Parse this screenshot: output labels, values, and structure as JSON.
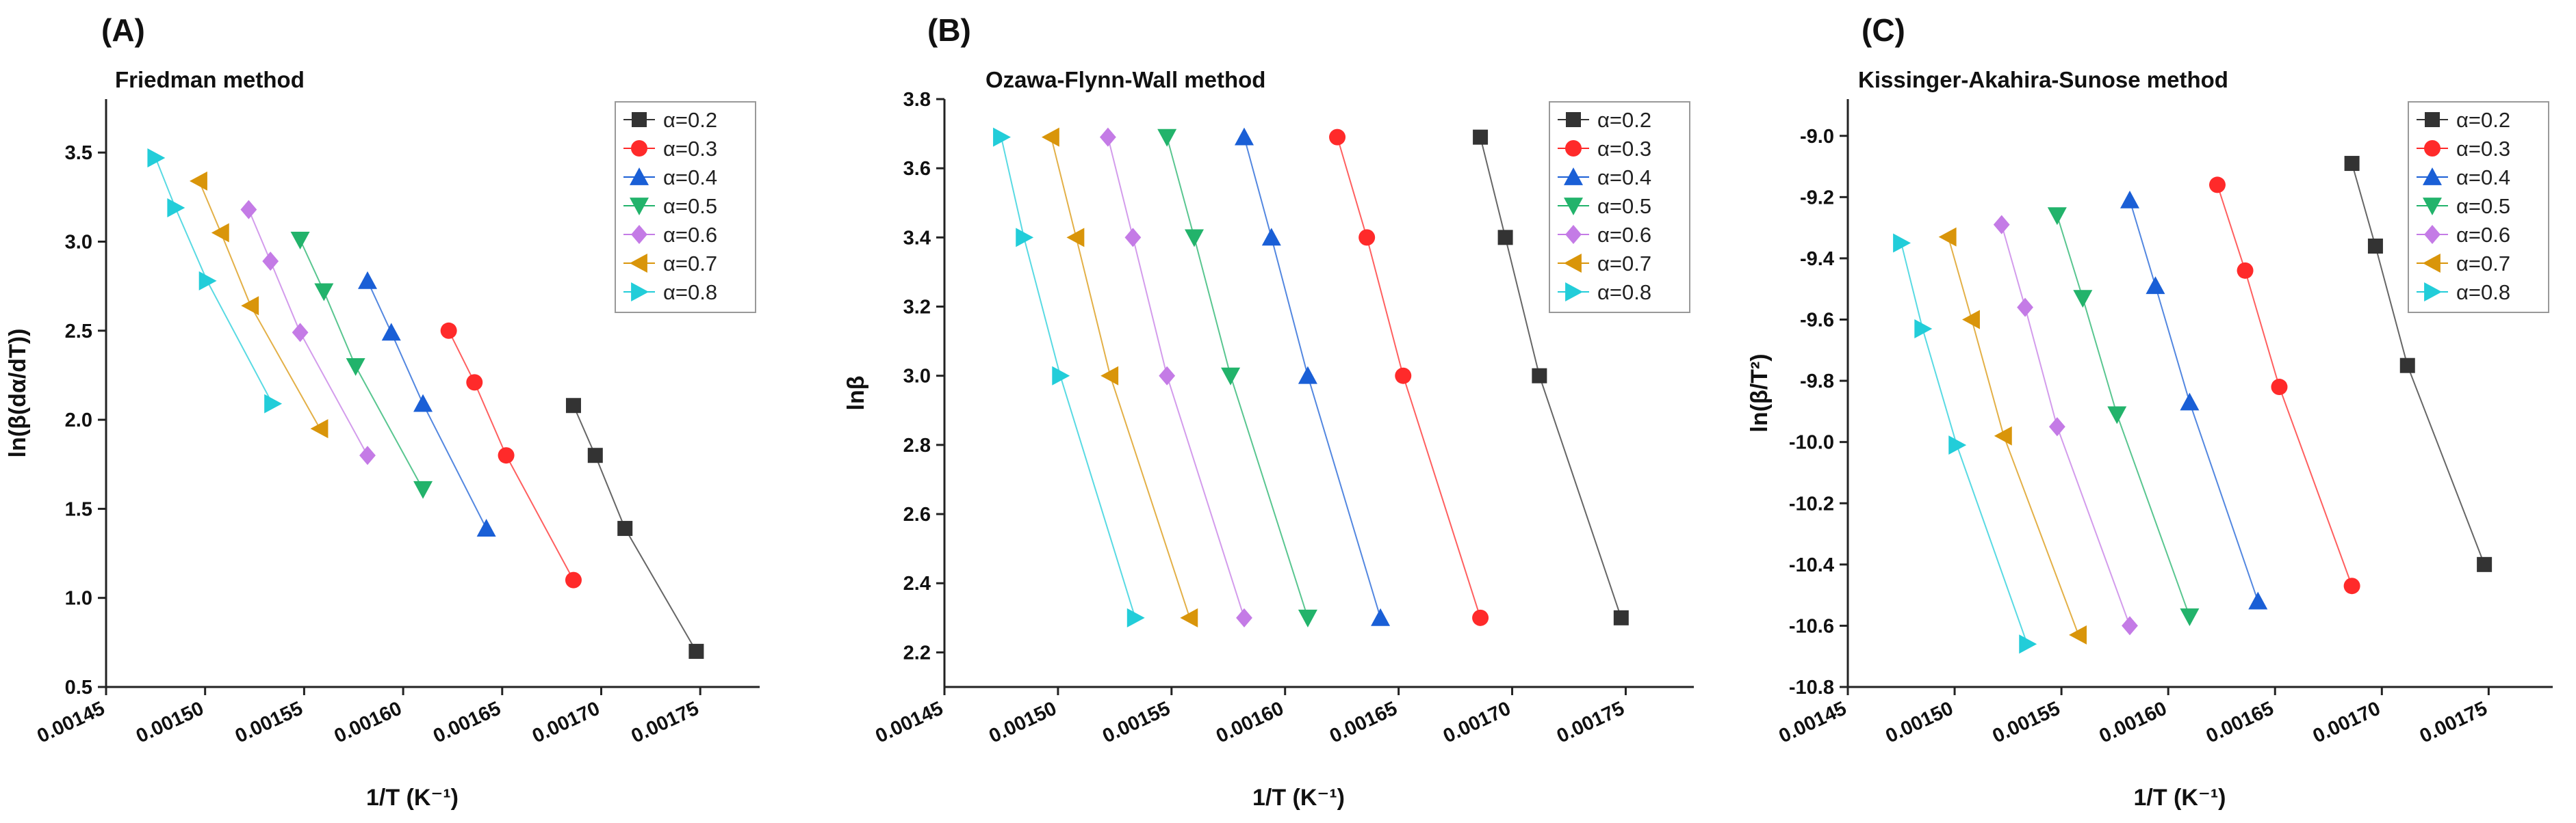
{
  "figure": {
    "series_names": [
      "α=0.2",
      "α=0.3",
      "α=0.4",
      "α=0.5",
      "α=0.6",
      "α=0.7",
      "α=0.8"
    ],
    "series_colors": [
      "#333333",
      "#ff2a2a",
      "#1a5fd6",
      "#22b36b",
      "#c47be6",
      "#d9950a",
      "#22cdd9"
    ],
    "series_markers": [
      "square",
      "circle",
      "triangle-up",
      "triangle-down",
      "diamond",
      "triangle-left",
      "triangle-right"
    ]
  },
  "chart_data": [
    {
      "type": "line",
      "panel_label": "(A)",
      "title": "Friedman method",
      "xlabel": "1/T (K⁻¹)",
      "ylabel": "ln(β(dα/dT))",
      "xlim": [
        0.00145,
        0.00178
      ],
      "ylim": [
        0.5,
        3.8
      ],
      "xticks": [
        "0.00145",
        "0.00150",
        "0.00155",
        "0.00160",
        "0.00165",
        "0.00170",
        "0.00175"
      ],
      "yticks": [
        "0.5",
        "1.0",
        "1.5",
        "2.0",
        "2.5",
        "3.0",
        "3.5"
      ],
      "legend": "top-right",
      "series": [
        {
          "name": "α=0.2",
          "x": [
            0.001686,
            0.001697,
            0.001712,
            0.001748
          ],
          "y": [
            2.08,
            1.8,
            1.39,
            0.7
          ]
        },
        {
          "name": "α=0.3",
          "x": [
            0.001623,
            0.001636,
            0.001652,
            0.001686
          ],
          "y": [
            2.5,
            2.21,
            1.8,
            1.1
          ]
        },
        {
          "name": "α=0.4",
          "x": [
            0.001582,
            0.001594,
            0.00161,
            0.001642
          ],
          "y": [
            2.78,
            2.49,
            2.09,
            1.39
          ]
        },
        {
          "name": "α=0.5",
          "x": [
            0.001548,
            0.00156,
            0.001576,
            0.00161
          ],
          "y": [
            3.01,
            2.72,
            2.3,
            1.61
          ]
        },
        {
          "name": "α=0.6",
          "x": [
            0.001522,
            0.001533,
            0.001548,
            0.001582
          ],
          "y": [
            3.18,
            2.89,
            2.49,
            1.8
          ]
        },
        {
          "name": "α=0.7",
          "x": [
            0.001497,
            0.001508,
            0.001523,
            0.001558
          ],
          "y": [
            3.34,
            3.05,
            2.64,
            1.95
          ]
        },
        {
          "name": "α=0.8",
          "x": [
            0.001475,
            0.001485,
            0.001501,
            0.001534
          ],
          "y": [
            3.47,
            3.19,
            2.78,
            2.09
          ]
        }
      ]
    },
    {
      "type": "line",
      "panel_label": "(B)",
      "title": "Ozawa-Flynn-Wall method",
      "xlabel": "1/T (K⁻¹)",
      "ylabel": "lnβ",
      "xlim": [
        0.00145,
        0.00178
      ],
      "ylim": [
        2.1,
        3.8
      ],
      "xticks": [
        "0.00145",
        "0.00150",
        "0.00155",
        "0.00160",
        "0.00165",
        "0.00170",
        "0.00175"
      ],
      "yticks": [
        "2.2",
        "2.4",
        "2.6",
        "2.8",
        "3.0",
        "3.2",
        "3.4",
        "3.6",
        "3.8"
      ],
      "legend": "top-right",
      "series": [
        {
          "name": "α=0.2",
          "x": [
            0.001686,
            0.001697,
            0.001712,
            0.001748
          ],
          "y": [
            3.69,
            3.4,
            3.0,
            2.3
          ]
        },
        {
          "name": "α=0.3",
          "x": [
            0.001623,
            0.001636,
            0.001652,
            0.001686
          ],
          "y": [
            3.69,
            3.4,
            3.0,
            2.3
          ]
        },
        {
          "name": "α=0.4",
          "x": [
            0.001582,
            0.001594,
            0.00161,
            0.001642
          ],
          "y": [
            3.69,
            3.4,
            3.0,
            2.3
          ]
        },
        {
          "name": "α=0.5",
          "x": [
            0.001548,
            0.00156,
            0.001576,
            0.00161
          ],
          "y": [
            3.69,
            3.4,
            3.0,
            2.3
          ]
        },
        {
          "name": "α=0.6",
          "x": [
            0.001522,
            0.001533,
            0.001548,
            0.001582
          ],
          "y": [
            3.69,
            3.4,
            3.0,
            2.3
          ]
        },
        {
          "name": "α=0.7",
          "x": [
            0.001497,
            0.001508,
            0.001523,
            0.001558
          ],
          "y": [
            3.69,
            3.4,
            3.0,
            2.3
          ]
        },
        {
          "name": "α=0.8",
          "x": [
            0.001475,
            0.001485,
            0.001501,
            0.001534
          ],
          "y": [
            3.69,
            3.4,
            3.0,
            2.3
          ]
        }
      ]
    },
    {
      "type": "line",
      "panel_label": "(C)",
      "title": "Kissinger-Akahira-Sunose method",
      "xlabel": "1/T (K⁻¹)",
      "ylabel": "ln(β/T²)",
      "xlim": [
        0.00145,
        0.00178
      ],
      "ylim": [
        -10.8,
        -8.88
      ],
      "xticks": [
        "0.00145",
        "0.00150",
        "0.00155",
        "0.00160",
        "0.00165",
        "0.00170",
        "0.00175"
      ],
      "yticks": [
        "-10.8",
        "-10.6",
        "-10.4",
        "-10.2",
        "-10.0",
        "-9.8",
        "-9.6",
        "-9.4",
        "-9.2",
        "-9.0"
      ],
      "legend": "top-right",
      "series": [
        {
          "name": "α=0.2",
          "x": [
            0.001686,
            0.001697,
            0.001712,
            0.001748
          ],
          "y": [
            -9.09,
            -9.36,
            -9.75,
            -10.4
          ]
        },
        {
          "name": "α=0.3",
          "x": [
            0.001623,
            0.001636,
            0.001652,
            0.001686
          ],
          "y": [
            -9.16,
            -9.44,
            -9.82,
            -10.47
          ]
        },
        {
          "name": "α=0.4",
          "x": [
            0.001582,
            0.001594,
            0.00161,
            0.001642
          ],
          "y": [
            -9.21,
            -9.49,
            -9.87,
            -10.52
          ]
        },
        {
          "name": "α=0.5",
          "x": [
            0.001548,
            0.00156,
            0.001576,
            0.00161
          ],
          "y": [
            -9.26,
            -9.53,
            -9.91,
            -10.57
          ]
        },
        {
          "name": "α=0.6",
          "x": [
            0.001522,
            0.001533,
            0.001548,
            0.001582
          ],
          "y": [
            -9.29,
            -9.56,
            -9.95,
            -10.6
          ]
        },
        {
          "name": "α=0.7",
          "x": [
            0.001497,
            0.001508,
            0.001523,
            0.001558
          ],
          "y": [
            -9.33,
            -9.6,
            -9.98,
            -10.63
          ]
        },
        {
          "name": "α=0.8",
          "x": [
            0.001475,
            0.001485,
            0.001501,
            0.001534
          ],
          "y": [
            -9.35,
            -9.63,
            -10.01,
            -10.66
          ]
        }
      ]
    }
  ]
}
